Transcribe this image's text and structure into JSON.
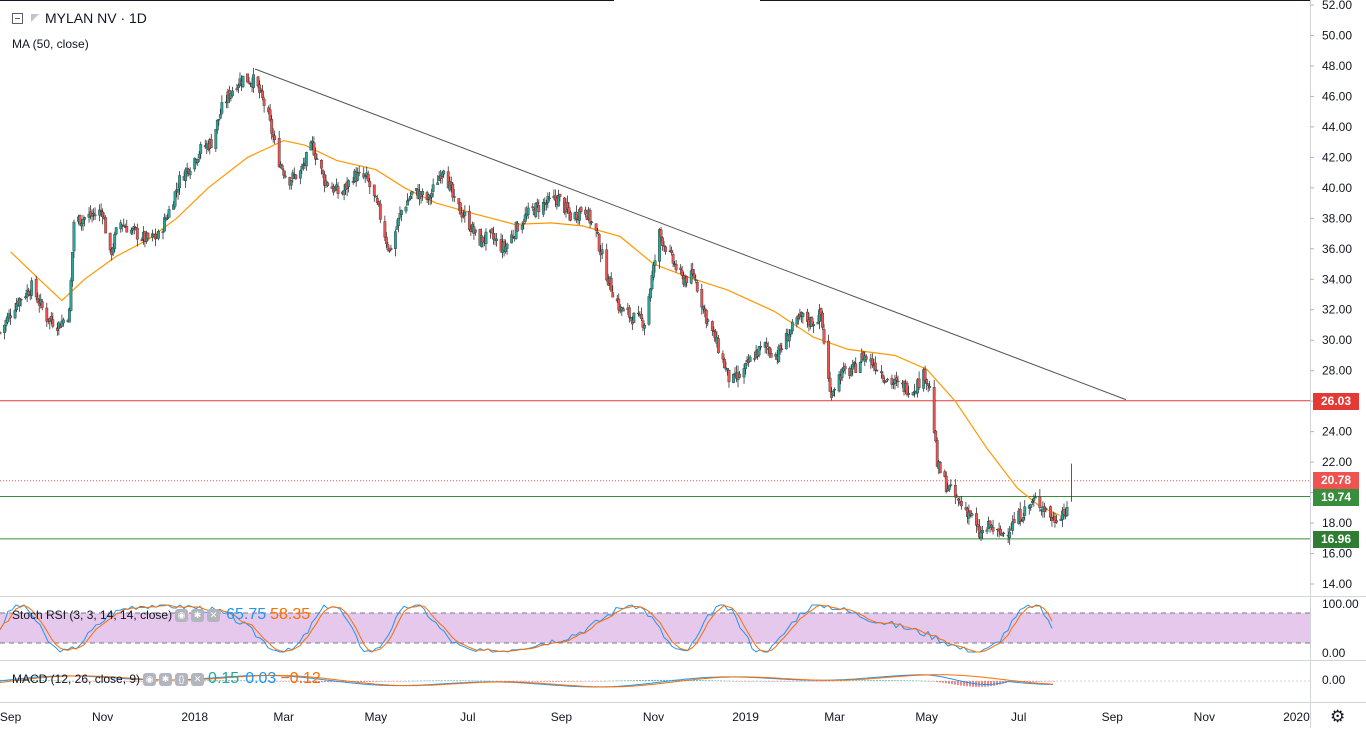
{
  "header": {
    "symbol": "MYLAN NV · 1D",
    "ma_label": "MA (50, close)"
  },
  "indicators": {
    "stoch_label": "Stoch RSI (3, 3, 14, 14, close)",
    "stoch_k": "65.75",
    "stoch_d": "58.35",
    "macd_label": "MACD (12, 26, close, 9)",
    "macd_hist": "0.15",
    "macd_line": "0.03",
    "macd_signal": "−0.12"
  },
  "price_axis": {
    "ticks": [
      "52.00",
      "50.00",
      "48.00",
      "46.00",
      "44.00",
      "42.00",
      "40.00",
      "38.00",
      "36.00",
      "34.00",
      "32.00",
      "30.00",
      "28.00",
      "26.00",
      "24.00",
      "22.00",
      "20.00",
      "18.00",
      "16.00",
      "14.00"
    ]
  },
  "stoch_axis": {
    "ticks": [
      "100.00",
      "0.00"
    ]
  },
  "macd_axis": {
    "ticks": [
      "0.00"
    ]
  },
  "time_axis": {
    "labels": [
      "Sep",
      "Nov",
      "2018",
      "Mar",
      "May",
      "Jul",
      "Sep",
      "Nov",
      "2019",
      "Mar",
      "May",
      "Jul",
      "Sep",
      "Nov",
      "2020"
    ]
  },
  "levels": {
    "resistance": "26.03",
    "last_price": "20.78",
    "support_1": "19.74",
    "support_2": "16.96"
  },
  "icons": {
    "settings": "gear-icon"
  },
  "colors": {
    "up": "#26a69a",
    "down": "#ef5350",
    "ma": "#ff9800",
    "resistance": "#e53935",
    "support": "#388e3c",
    "trend": "#555555",
    "stoch_k": "#2196f3",
    "stoch_d": "#ff6d00",
    "stoch_band": "#e1bee7"
  },
  "chart_data": {
    "type": "candlestick",
    "title": "MYLAN NV · 1D",
    "x_range": [
      "2017-08-25",
      "2020-01-10"
    ],
    "ylim": [
      14,
      52
    ],
    "series": [
      {
        "name": "MA (50, close)",
        "values": [
          [
            "2017-09-01",
            35.8
          ],
          [
            "2017-09-20",
            34.0
          ],
          [
            "2017-10-05",
            32.6
          ],
          [
            "2017-10-20",
            34.0
          ],
          [
            "2017-11-10",
            35.5
          ],
          [
            "2017-12-01",
            36.6
          ],
          [
            "2017-12-20",
            38.0
          ],
          [
            "2018-01-10",
            40.0
          ],
          [
            "2018-02-05",
            42.0
          ],
          [
            "2018-03-01",
            43.1
          ],
          [
            "2018-03-15",
            42.8
          ],
          [
            "2018-04-05",
            41.8
          ],
          [
            "2018-05-01",
            41.2
          ],
          [
            "2018-05-20",
            40.0
          ],
          [
            "2018-06-10",
            39.0
          ],
          [
            "2018-07-05",
            38.3
          ],
          [
            "2018-08-01",
            37.6
          ],
          [
            "2018-08-25",
            37.7
          ],
          [
            "2018-09-15",
            37.5
          ],
          [
            "2018-10-10",
            36.8
          ],
          [
            "2018-11-01",
            35.0
          ],
          [
            "2018-11-25",
            34.1
          ],
          [
            "2018-12-20",
            33.3
          ],
          [
            "2019-01-20",
            31.9
          ],
          [
            "2019-02-15",
            30.2
          ],
          [
            "2019-03-10",
            29.4
          ],
          [
            "2019-04-10",
            29.0
          ],
          [
            "2019-05-01",
            28.1
          ],
          [
            "2019-05-20",
            26.0
          ],
          [
            "2019-06-10",
            22.9
          ],
          [
            "2019-06-30",
            20.3
          ],
          [
            "2019-07-15",
            19.1
          ],
          [
            "2019-07-28",
            18.5
          ]
        ]
      },
      {
        "name": "Trend line",
        "values": [
          [
            "2018-02-10",
            47.8
          ],
          [
            "2019-09-10",
            26.1
          ]
        ]
      },
      {
        "name": "candles",
        "points": [
          [
            "2017-08-25",
            30.5
          ],
          [
            "2017-09-05",
            32.5
          ],
          [
            "2017-09-15",
            33.5
          ],
          [
            "2017-09-25",
            31.5
          ],
          [
            "2017-10-03",
            31.0
          ],
          [
            "2017-10-10",
            31.8
          ],
          [
            "2017-10-13",
            37.8
          ],
          [
            "2017-10-25",
            38.2
          ],
          [
            "2017-11-01",
            38.5
          ],
          [
            "2017-11-06",
            35.5
          ],
          [
            "2017-11-12",
            37.8
          ],
          [
            "2017-11-20",
            37.2
          ],
          [
            "2017-11-30",
            36.6
          ],
          [
            "2017-12-08",
            36.8
          ],
          [
            "2017-12-15",
            38.5
          ],
          [
            "2017-12-22",
            40.5
          ],
          [
            "2018-01-05",
            42.5
          ],
          [
            "2018-01-12",
            43.0
          ],
          [
            "2018-01-20",
            45.5
          ],
          [
            "2018-01-28",
            46.8
          ],
          [
            "2018-02-02",
            47.2
          ],
          [
            "2018-02-10",
            47.0
          ],
          [
            "2018-02-18",
            45.0
          ],
          [
            "2018-02-25",
            42.0
          ],
          [
            "2018-03-04",
            40.5
          ],
          [
            "2018-03-12",
            41.0
          ],
          [
            "2018-03-20",
            42.8
          ],
          [
            "2018-03-28",
            40.5
          ],
          [
            "2018-04-08",
            39.5
          ],
          [
            "2018-04-16",
            40.8
          ],
          [
            "2018-04-25",
            40.6
          ],
          [
            "2018-05-03",
            38.5
          ],
          [
            "2018-05-10",
            35.8
          ],
          [
            "2018-05-18",
            38.5
          ],
          [
            "2018-05-26",
            39.8
          ],
          [
            "2018-06-05",
            39.2
          ],
          [
            "2018-06-15",
            41.5
          ],
          [
            "2018-06-22",
            39.0
          ],
          [
            "2018-06-30",
            38.0
          ],
          [
            "2018-07-08",
            36.5
          ],
          [
            "2018-07-16",
            36.8
          ],
          [
            "2018-07-25",
            36.0
          ],
          [
            "2018-08-03",
            37.5
          ],
          [
            "2018-08-12",
            38.5
          ],
          [
            "2018-08-22",
            39.0
          ],
          [
            "2018-08-30",
            39.3
          ],
          [
            "2018-09-08",
            38.0
          ],
          [
            "2018-09-16",
            38.8
          ],
          [
            "2018-09-24",
            37.0
          ],
          [
            "2018-10-02",
            34.0
          ],
          [
            "2018-10-10",
            32.0
          ],
          [
            "2018-10-18",
            31.5
          ],
          [
            "2018-10-26",
            31.2
          ],
          [
            "2018-11-05",
            37.0
          ],
          [
            "2018-11-12",
            35.5
          ],
          [
            "2018-11-20",
            34.0
          ],
          [
            "2018-11-28",
            34.2
          ],
          [
            "2018-12-06",
            31.5
          ],
          [
            "2018-12-14",
            29.5
          ],
          [
            "2018-12-22",
            27.2
          ],
          [
            "2018-12-30",
            27.8
          ],
          [
            "2019-01-06",
            29.0
          ],
          [
            "2019-01-14",
            29.6
          ],
          [
            "2019-01-22",
            29.0
          ],
          [
            "2019-01-30",
            30.5
          ],
          [
            "2019-02-07",
            31.5
          ],
          [
            "2019-02-14",
            31.2
          ],
          [
            "2019-02-20",
            31.7
          ],
          [
            "2019-02-26",
            26.5
          ],
          [
            "2019-03-05",
            27.8
          ],
          [
            "2019-03-13",
            28.0
          ],
          [
            "2019-03-20",
            29.0
          ],
          [
            "2019-03-28",
            28.4
          ],
          [
            "2019-04-05",
            27.4
          ],
          [
            "2019-04-13",
            27.0
          ],
          [
            "2019-04-22",
            26.8
          ],
          [
            "2019-04-30",
            27.8
          ],
          [
            "2019-05-04",
            26.5
          ],
          [
            "2019-05-08",
            21.8
          ],
          [
            "2019-05-14",
            20.5
          ],
          [
            "2019-05-22",
            19.4
          ],
          [
            "2019-05-30",
            18.6
          ],
          [
            "2019-06-05",
            17.2
          ],
          [
            "2019-06-12",
            17.8
          ],
          [
            "2019-06-18",
            17.2
          ],
          [
            "2019-06-24",
            17.6
          ],
          [
            "2019-06-30",
            18.3
          ],
          [
            "2019-07-06",
            18.9
          ],
          [
            "2019-07-12",
            19.5
          ],
          [
            "2019-07-18",
            19.0
          ],
          [
            "2019-07-24",
            18.2
          ],
          [
            "2019-07-30",
            18.8
          ],
          [
            "2019-08-02",
            18.6
          ],
          [
            "2019-08-05",
            20.8
          ]
        ]
      }
    ],
    "horizontal_levels": [
      26.03,
      20.78,
      19.74,
      16.96
    ]
  }
}
